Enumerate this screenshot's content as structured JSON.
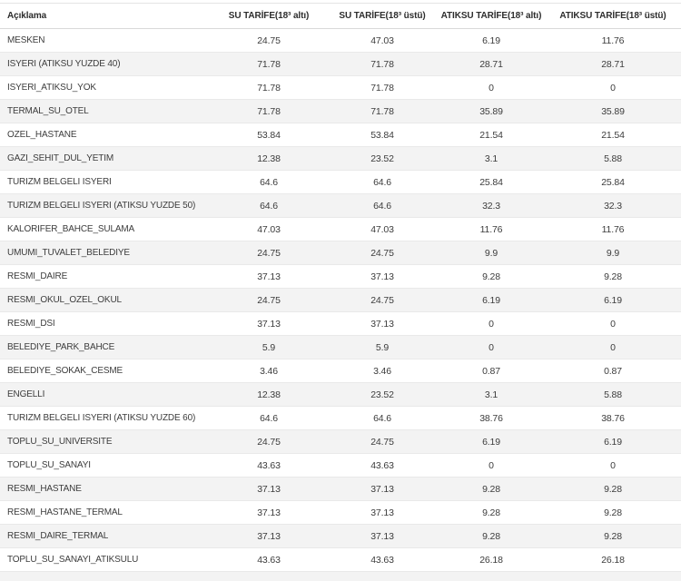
{
  "colors": {
    "stripe": "#f3f3f3",
    "row_border": "#e9e9e9",
    "header_border": "#d9d9d9",
    "header_text": "#2d2d2d",
    "cell_text": "#3c3c3c"
  },
  "table": {
    "columns": [
      {
        "label": "Açıklama"
      },
      {
        "label": "SU TARİFE(18³ altı)"
      },
      {
        "label": "SU TARİFE(18³ üstü)"
      },
      {
        "label": "ATIKSU TARİFE(18³ altı)"
      },
      {
        "label": "ATIKSU TARİFE(18³ üstü)"
      }
    ],
    "rows": [
      {
        "aciklama": "MESKEN",
        "values": [
          "24.75",
          "47.03",
          "6.19",
          "11.76"
        ]
      },
      {
        "aciklama": "ISYERI (ATIKSU YUZDE 40)",
        "values": [
          "71.78",
          "71.78",
          "28.71",
          "28.71"
        ]
      },
      {
        "aciklama": "ISYERI_ATIKSU_YOK",
        "values": [
          "71.78",
          "71.78",
          "0",
          "0"
        ]
      },
      {
        "aciklama": "TERMAL_SU_OTEL",
        "values": [
          "71.78",
          "71.78",
          "35.89",
          "35.89"
        ]
      },
      {
        "aciklama": "OZEL_HASTANE",
        "values": [
          "53.84",
          "53.84",
          "21.54",
          "21.54"
        ]
      },
      {
        "aciklama": "GAZI_SEHIT_DUL_YETIM",
        "values": [
          "12.38",
          "23.52",
          "3.1",
          "5.88"
        ]
      },
      {
        "aciklama": "TURIZM BELGELI ISYERI",
        "values": [
          "64.6",
          "64.6",
          "25.84",
          "25.84"
        ]
      },
      {
        "aciklama": "TURIZM BELGELI ISYERI (ATIKSU YUZDE 50)",
        "values": [
          "64.6",
          "64.6",
          "32.3",
          "32.3"
        ]
      },
      {
        "aciklama": "KALORIFER_BAHCE_SULAMA",
        "values": [
          "47.03",
          "47.03",
          "11.76",
          "11.76"
        ]
      },
      {
        "aciklama": "UMUMI_TUVALET_BELEDIYE",
        "values": [
          "24.75",
          "24.75",
          "9.9",
          "9.9"
        ]
      },
      {
        "aciklama": "RESMI_DAIRE",
        "values": [
          "37.13",
          "37.13",
          "9.28",
          "9.28"
        ]
      },
      {
        "aciklama": "RESMI_OKUL_OZEL_OKUL",
        "values": [
          "24.75",
          "24.75",
          "6.19",
          "6.19"
        ]
      },
      {
        "aciklama": "RESMI_DSI",
        "values": [
          "37.13",
          "37.13",
          "0",
          "0"
        ]
      },
      {
        "aciklama": "BELEDIYE_PARK_BAHCE",
        "values": [
          "5.9",
          "5.9",
          "0",
          "0"
        ]
      },
      {
        "aciklama": "BELEDIYE_SOKAK_CESME",
        "values": [
          "3.46",
          "3.46",
          "0.87",
          "0.87"
        ]
      },
      {
        "aciklama": "ENGELLI",
        "values": [
          "12.38",
          "23.52",
          "3.1",
          "5.88"
        ]
      },
      {
        "aciklama": "TURIZM BELGELI ISYERI (ATIKSU YUZDE 60)",
        "values": [
          "64.6",
          "64.6",
          "38.76",
          "38.76"
        ]
      },
      {
        "aciklama": "TOPLU_SU_UNIVERSITE",
        "values": [
          "24.75",
          "24.75",
          "6.19",
          "6.19"
        ]
      },
      {
        "aciklama": "TOPLU_SU_SANAYI",
        "values": [
          "43.63",
          "43.63",
          "0",
          "0"
        ]
      },
      {
        "aciklama": "RESMI_HASTANE",
        "values": [
          "37.13",
          "37.13",
          "9.28",
          "9.28"
        ]
      },
      {
        "aciklama": "RESMI_HASTANE_TERMAL",
        "values": [
          "37.13",
          "37.13",
          "9.28",
          "9.28"
        ]
      },
      {
        "aciklama": "RESMI_DAIRE_TERMAL",
        "values": [
          "37.13",
          "37.13",
          "9.28",
          "9.28"
        ]
      },
      {
        "aciklama": "TOPLU_SU_SANAYI_ATIKSULU",
        "values": [
          "43.63",
          "43.63",
          "26.18",
          "26.18"
        ]
      }
    ]
  }
}
